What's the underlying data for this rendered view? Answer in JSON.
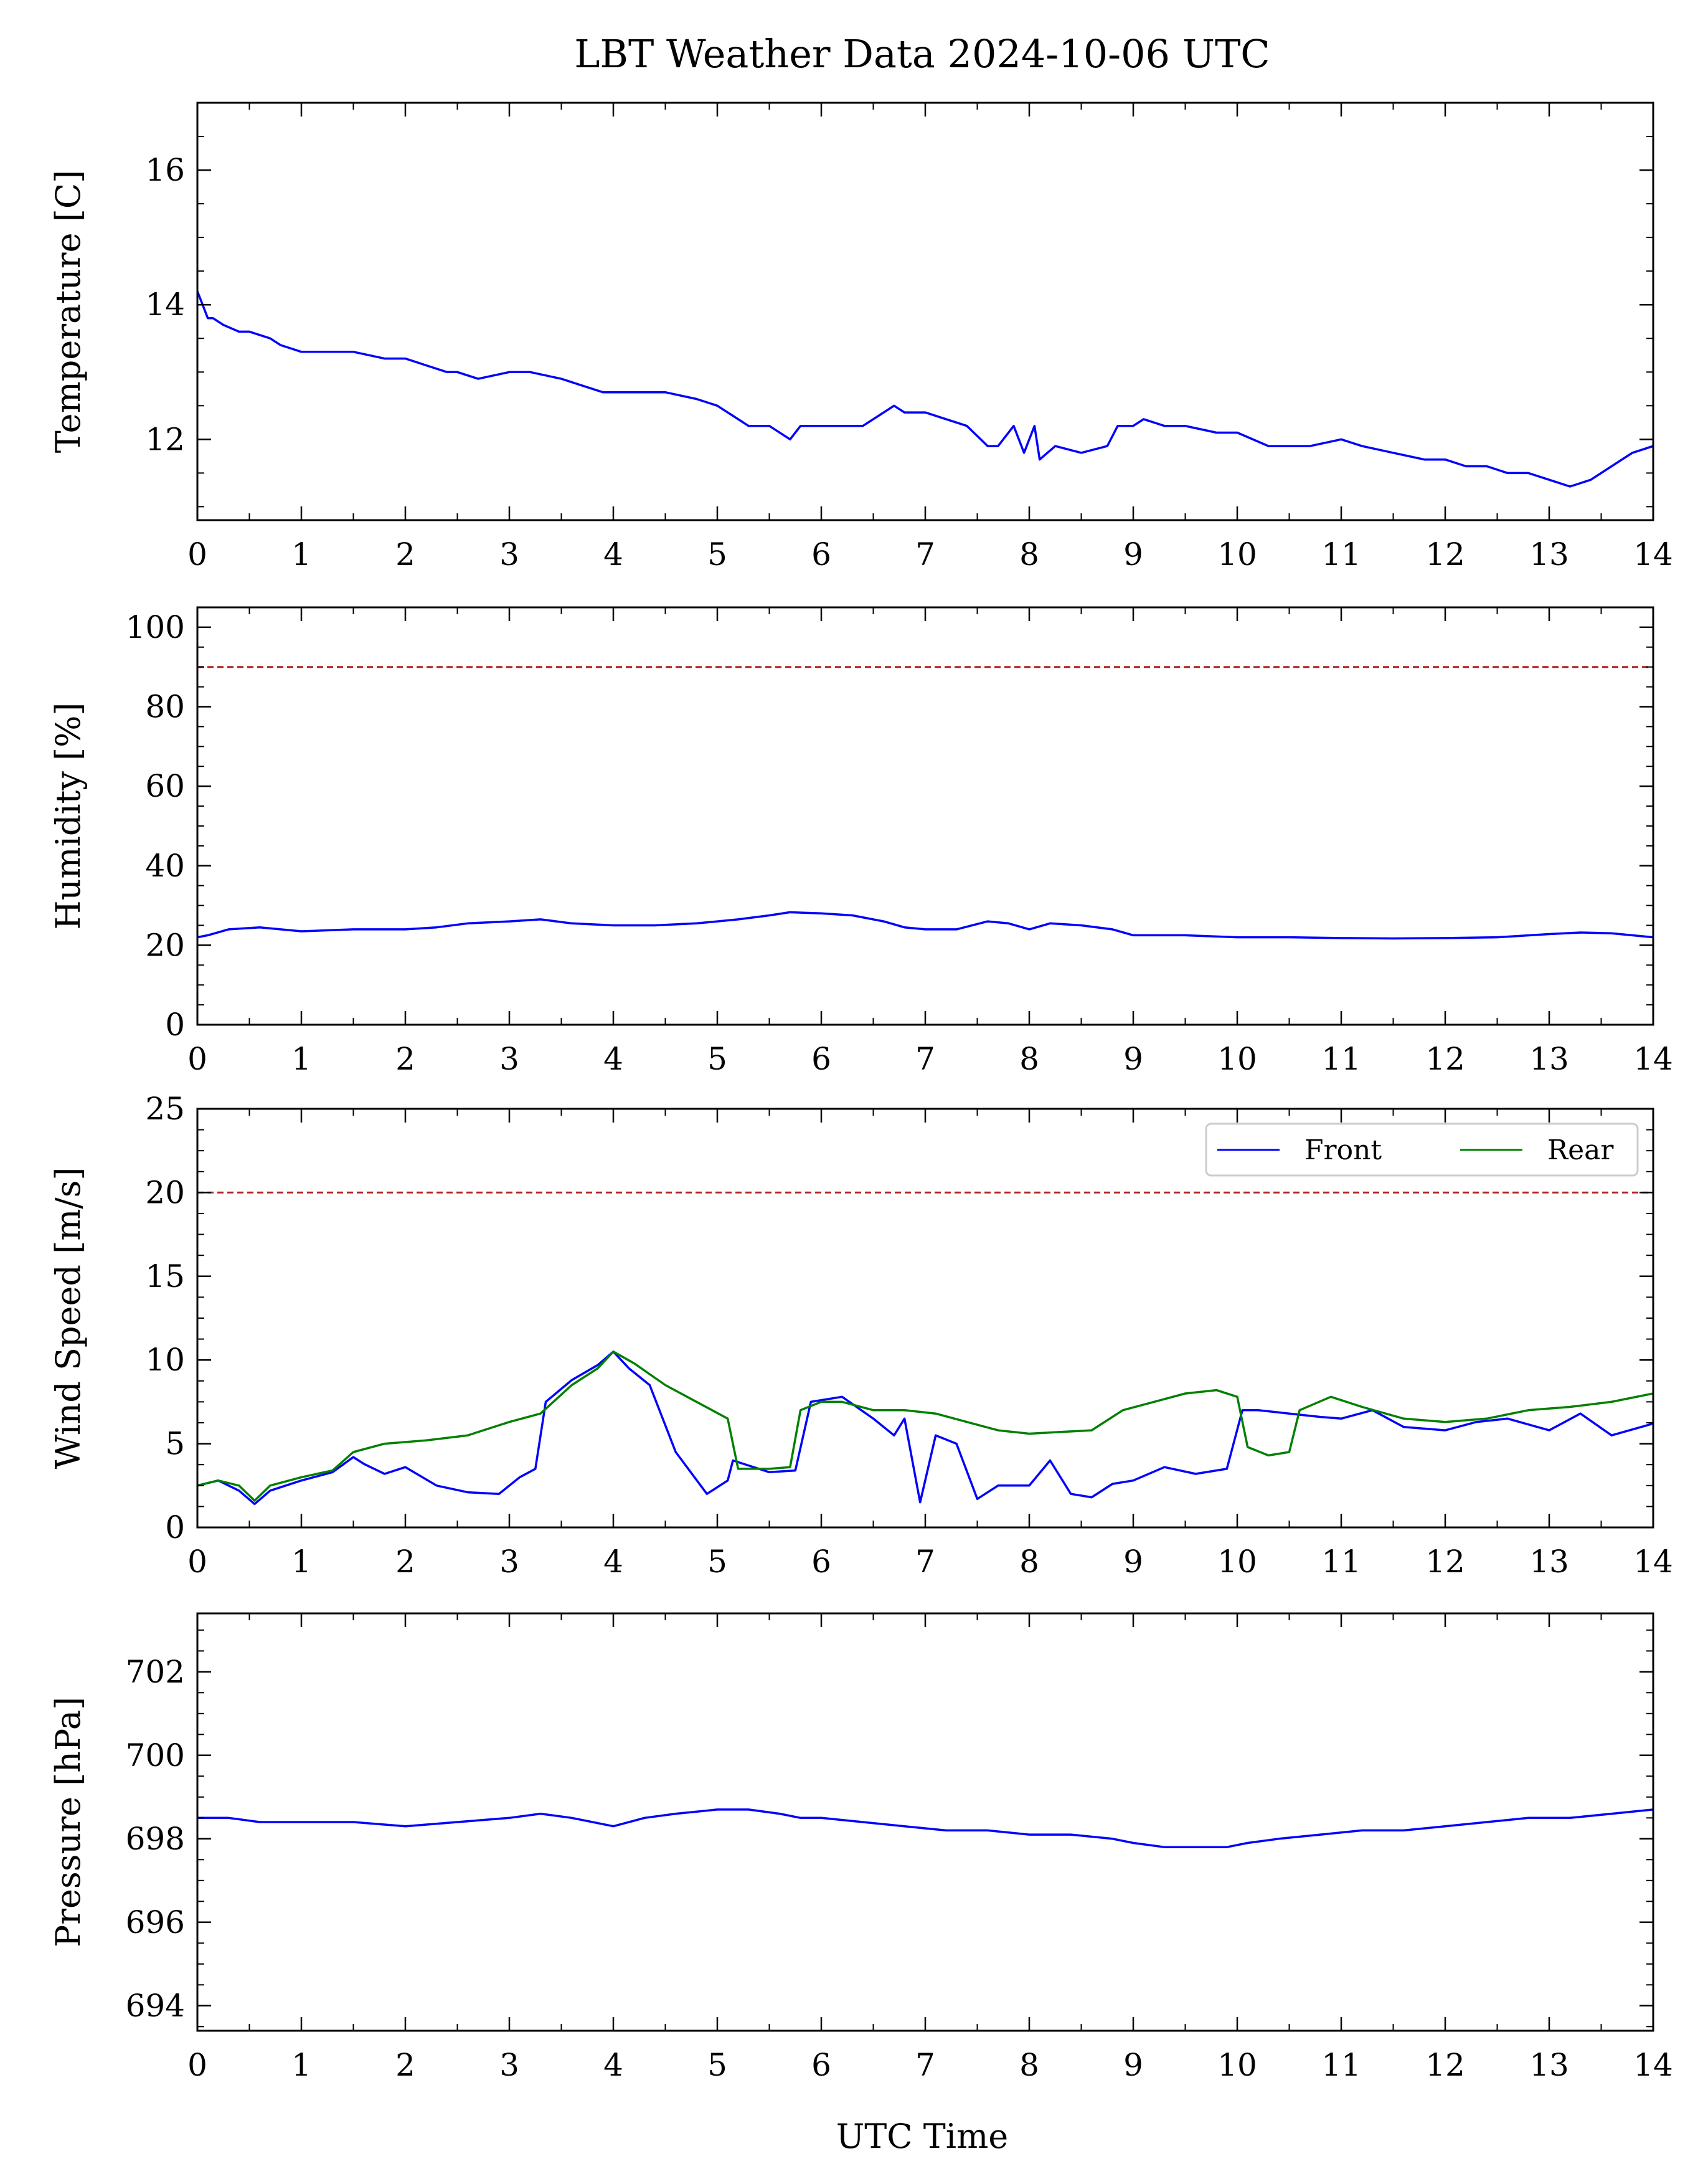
{
  "figure": {
    "title": "LBT Weather Data 2024-10-06 UTC",
    "xlabel": "UTC Time"
  },
  "colors": {
    "primary_series": "#0000ff",
    "secondary_series": "#008000",
    "front_smooth": "#00ffff",
    "rear_smooth": "#90ee90",
    "threshold": "#b22222"
  },
  "chart_data": [
    {
      "type": "line",
      "ylabel": "Temperature [C]",
      "xlim": [
        0,
        14
      ],
      "ylim": [
        10.8,
        17.0
      ],
      "xticks": [
        0,
        1,
        2,
        3,
        4,
        5,
        6,
        7,
        8,
        9,
        10,
        11,
        12,
        13,
        14
      ],
      "yticks": [
        12,
        14,
        16
      ],
      "grid": false,
      "series": [
        {
          "color": "#0000ff",
          "x": [
            0.0,
            0.05,
            0.1,
            0.15,
            0.25,
            0.4,
            0.5,
            0.7,
            0.8,
            1.0,
            1.2,
            1.5,
            1.8,
            2.0,
            2.2,
            2.4,
            2.5,
            2.7,
            3.0,
            3.2,
            3.5,
            3.7,
            3.9,
            4.0,
            4.2,
            4.5,
            4.8,
            5.0,
            5.2,
            5.3,
            5.5,
            5.7,
            5.8,
            6.0,
            6.2,
            6.4,
            6.6,
            6.7,
            6.8,
            7.0,
            7.2,
            7.4,
            7.6,
            7.7,
            7.85,
            7.95,
            8.05,
            8.1,
            8.25,
            8.5,
            8.75,
            8.85,
            9.0,
            9.1,
            9.3,
            9.5,
            9.8,
            10.0,
            10.3,
            10.5,
            10.7,
            11.0,
            11.2,
            11.5,
            11.8,
            12.0,
            12.2,
            12.4,
            12.6,
            12.8,
            13.0,
            13.2,
            13.4,
            13.6,
            13.8,
            14.0
          ],
          "y": [
            14.2,
            14.0,
            13.8,
            13.8,
            13.7,
            13.6,
            13.6,
            13.5,
            13.4,
            13.3,
            13.3,
            13.3,
            13.2,
            13.2,
            13.1,
            13.0,
            13.0,
            12.9,
            13.0,
            13.0,
            12.9,
            12.8,
            12.7,
            12.7,
            12.7,
            12.7,
            12.6,
            12.5,
            12.3,
            12.2,
            12.2,
            12.0,
            12.2,
            12.2,
            12.2,
            12.2,
            12.4,
            12.5,
            12.4,
            12.4,
            12.3,
            12.2,
            11.9,
            11.9,
            12.2,
            11.8,
            12.2,
            11.7,
            11.9,
            11.8,
            11.9,
            12.2,
            12.2,
            12.3,
            12.2,
            12.2,
            12.1,
            12.1,
            11.9,
            11.9,
            11.9,
            12.0,
            11.9,
            11.8,
            11.7,
            11.7,
            11.6,
            11.6,
            11.5,
            11.5,
            11.4,
            11.3,
            11.4,
            11.6,
            11.8,
            11.9
          ]
        }
      ]
    },
    {
      "type": "line",
      "ylabel": "Humidity [%]",
      "xlim": [
        0,
        14
      ],
      "ylim": [
        0,
        105
      ],
      "xticks": [
        0,
        1,
        2,
        3,
        4,
        5,
        6,
        7,
        8,
        9,
        10,
        11,
        12,
        13,
        14
      ],
      "yticks": [
        0,
        20,
        40,
        60,
        80,
        100
      ],
      "threshold": 90,
      "grid": false,
      "series": [
        {
          "color": "#0000ff",
          "x": [
            0.0,
            0.1,
            0.3,
            0.6,
            1.0,
            1.5,
            2.0,
            2.3,
            2.6,
            3.0,
            3.3,
            3.6,
            4.0,
            4.4,
            4.8,
            5.2,
            5.5,
            5.7,
            6.0,
            6.3,
            6.6,
            6.8,
            7.0,
            7.3,
            7.6,
            7.8,
            8.0,
            8.2,
            8.5,
            8.8,
            9.0,
            9.2,
            9.5,
            10.0,
            10.5,
            11.0,
            11.5,
            12.0,
            12.5,
            13.0,
            13.3,
            13.6,
            14.0
          ],
          "y": [
            22,
            22.5,
            24,
            24.5,
            23.5,
            24,
            24,
            24.5,
            25.5,
            26,
            26.5,
            25.5,
            25,
            25,
            25.5,
            26.5,
            27.5,
            28.3,
            28,
            27.5,
            26,
            24.5,
            24,
            24,
            26,
            25.5,
            24,
            25.5,
            25,
            24,
            22.5,
            22.5,
            22.5,
            22,
            22,
            21.8,
            21.7,
            21.8,
            22,
            22.8,
            23.2,
            23,
            22
          ]
        }
      ]
    },
    {
      "type": "line",
      "ylabel": "Wind Speed [m/s]",
      "xlim": [
        0,
        14
      ],
      "ylim": [
        0,
        25
      ],
      "xticks": [
        0,
        1,
        2,
        3,
        4,
        5,
        6,
        7,
        8,
        9,
        10,
        11,
        12,
        13,
        14
      ],
      "yticks": [
        0,
        5,
        10,
        15,
        20,
        25
      ],
      "threshold": 20,
      "legend": {
        "entries": [
          "Front",
          "Rear"
        ],
        "position": "top-right",
        "ncol": 2
      },
      "grid": false,
      "series": [
        {
          "name": "Front",
          "color": "#0000ff",
          "x": [
            0.0,
            0.2,
            0.4,
            0.55,
            0.7,
            1.0,
            1.3,
            1.5,
            1.6,
            1.8,
            2.0,
            2.3,
            2.6,
            2.9,
            3.1,
            3.25,
            3.35,
            3.6,
            3.85,
            4.0,
            4.15,
            4.35,
            4.6,
            4.9,
            5.1,
            5.15,
            5.5,
            5.75,
            5.9,
            6.2,
            6.5,
            6.7,
            6.8,
            6.95,
            7.1,
            7.3,
            7.5,
            7.7,
            8.0,
            8.2,
            8.4,
            8.6,
            8.8,
            9.0,
            9.3,
            9.6,
            9.9,
            10.05,
            10.2,
            10.5,
            10.8,
            11.0,
            11.3,
            11.6,
            12.0,
            12.3,
            12.6,
            13.0,
            13.3,
            13.6,
            14.0
          ],
          "y": [
            2.5,
            2.8,
            2.2,
            1.4,
            2.2,
            2.8,
            3.3,
            4.2,
            3.8,
            3.2,
            3.6,
            2.5,
            2.1,
            2.0,
            3.0,
            3.5,
            7.5,
            8.8,
            9.7,
            10.5,
            9.5,
            8.5,
            4.5,
            2.0,
            2.8,
            4.0,
            3.3,
            3.4,
            7.5,
            7.8,
            6.5,
            5.5,
            6.5,
            1.5,
            5.5,
            5.0,
            1.7,
            2.5,
            2.5,
            4.0,
            2.0,
            1.8,
            2.6,
            2.8,
            3.6,
            3.2,
            3.5,
            7.0,
            7.0,
            6.8,
            6.6,
            6.5,
            7.0,
            6.0,
            5.8,
            6.3,
            6.5,
            5.8,
            6.8,
            5.5,
            6.2
          ]
        },
        {
          "name": "Rear",
          "color": "#008000",
          "x": [
            0.0,
            0.2,
            0.4,
            0.55,
            0.7,
            1.0,
            1.3,
            1.5,
            1.8,
            2.2,
            2.6,
            3.0,
            3.3,
            3.6,
            3.85,
            4.0,
            4.2,
            4.5,
            4.8,
            5.1,
            5.2,
            5.5,
            5.7,
            5.8,
            6.0,
            6.2,
            6.5,
            6.8,
            7.1,
            7.4,
            7.7,
            8.0,
            8.3,
            8.6,
            8.9,
            9.2,
            9.5,
            9.8,
            10.0,
            10.1,
            10.3,
            10.5,
            10.6,
            10.9,
            11.2,
            11.6,
            12.0,
            12.4,
            12.8,
            13.2,
            13.6,
            14.0
          ],
          "y": [
            2.5,
            2.8,
            2.5,
            1.6,
            2.5,
            3.0,
            3.4,
            4.5,
            5.0,
            5.2,
            5.5,
            6.3,
            6.8,
            8.5,
            9.5,
            10.5,
            9.8,
            8.5,
            7.5,
            6.5,
            3.5,
            3.5,
            3.6,
            7.0,
            7.5,
            7.5,
            7.0,
            7.0,
            6.8,
            6.3,
            5.8,
            5.6,
            5.7,
            5.8,
            7.0,
            7.5,
            8.0,
            8.2,
            7.8,
            4.8,
            4.3,
            4.5,
            7.0,
            7.8,
            7.2,
            6.5,
            6.3,
            6.5,
            7.0,
            7.2,
            7.5,
            8.0
          ]
        }
      ]
    },
    {
      "type": "line",
      "ylabel": "Pressure [hPa]",
      "xlim": [
        0,
        14
      ],
      "ylim": [
        693.4,
        703.4
      ],
      "xticks": [
        0,
        1,
        2,
        3,
        4,
        5,
        6,
        7,
        8,
        9,
        10,
        11,
        12,
        13,
        14
      ],
      "yticks": [
        694,
        696,
        698,
        700,
        702
      ],
      "grid": false,
      "series": [
        {
          "color": "#0000ff",
          "x": [
            0.0,
            0.3,
            0.6,
            1.0,
            1.5,
            2.0,
            2.5,
            3.0,
            3.3,
            3.6,
            4.0,
            4.3,
            4.6,
            5.0,
            5.3,
            5.6,
            5.8,
            6.0,
            6.4,
            6.8,
            7.2,
            7.6,
            8.0,
            8.4,
            8.8,
            9.0,
            9.3,
            9.6,
            9.9,
            10.1,
            10.4,
            10.8,
            11.2,
            11.6,
            12.0,
            12.4,
            12.8,
            13.2,
            13.6,
            14.0
          ],
          "y": [
            698.5,
            698.5,
            698.4,
            698.4,
            698.4,
            698.3,
            698.4,
            698.5,
            698.6,
            698.5,
            698.3,
            698.5,
            698.6,
            698.7,
            698.7,
            698.6,
            698.5,
            698.5,
            698.4,
            698.3,
            698.2,
            698.2,
            698.1,
            698.1,
            698.0,
            697.9,
            697.8,
            697.8,
            697.8,
            697.9,
            698.0,
            698.1,
            698.2,
            698.2,
            698.3,
            698.4,
            698.5,
            698.5,
            698.6,
            698.7
          ]
        }
      ]
    }
  ]
}
